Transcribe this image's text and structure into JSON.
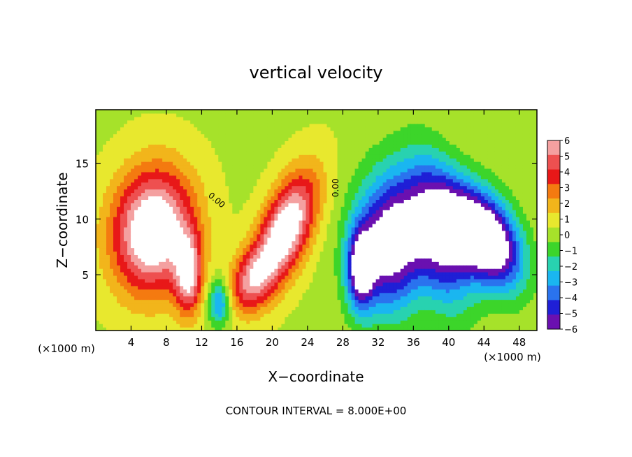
{
  "chart_data": {
    "type": "heatmap",
    "title": "vertical velocity",
    "xlabel": "X−coordinate",
    "ylabel": "Z−coordinate",
    "x_unit_left": "(×1000 m)",
    "x_unit_right": "(×1000 m)",
    "xlim": [
      0,
      50
    ],
    "ylim": [
      0,
      19.8
    ],
    "x_ticks": [
      4,
      8,
      12,
      16,
      20,
      24,
      28,
      32,
      36,
      40,
      44,
      48
    ],
    "y_ticks": [
      5,
      10,
      15
    ],
    "colorbar": {
      "ticks": [
        6,
        5,
        4,
        3,
        2,
        1,
        0,
        -1,
        -2,
        -3,
        -4,
        -5,
        -6
      ],
      "tick_labels": [
        "6",
        "5",
        "4",
        "3",
        "2",
        "1",
        "0",
        "−1",
        "−2",
        "−3",
        "−4",
        "−5",
        "−6"
      ],
      "colors": [
        "#f4a0a0",
        "#ee5050",
        "#e81818",
        "#f47a10",
        "#f2b51b",
        "#e8e82e",
        "#a6e22a",
        "#3cd52a",
        "#28d2b0",
        "#1ab6f0",
        "#2a73ee",
        "#1f1fd6",
        "#6a10b0"
      ]
    },
    "features": [
      {
        "cx": 6.5,
        "cz": 9.0,
        "rx": 4.5,
        "rz": 5.5,
        "rot": -12,
        "amp": 8.5
      },
      {
        "cx": 10.5,
        "cz": 5.0,
        "rx": 1.5,
        "rz": 3.5,
        "rot": 0,
        "amp": 6.0
      },
      {
        "cx": 21.5,
        "cz": 9.0,
        "rx": 2.6,
        "rz": 5.5,
        "rot": -28,
        "amp": 8.0
      },
      {
        "cx": 17.5,
        "cz": 4.5,
        "rx": 2.2,
        "rz": 3.0,
        "rot": -30,
        "amp": 4.5
      },
      {
        "cx": 14.0,
        "cz": 2.5,
        "rx": 1.2,
        "rz": 2.0,
        "rot": 0,
        "amp": -4.5
      },
      {
        "cx": 33.5,
        "cz": 8.0,
        "rx": 4.0,
        "rz": 6.0,
        "rot": -5,
        "amp": -8.5
      },
      {
        "cx": 39.0,
        "cz": 8.5,
        "rx": 3.0,
        "rz": 6.5,
        "rot": 15,
        "amp": -6.0
      },
      {
        "cx": 42.5,
        "cz": 9.0,
        "rx": 3.0,
        "rz": 5.0,
        "rot": 35,
        "amp": -7.0
      },
      {
        "cx": 45.5,
        "cz": 8.0,
        "rx": 2.8,
        "rz": 4.5,
        "rot": 30,
        "amp": -5.5
      },
      {
        "cx": 30.0,
        "cz": 5.5,
        "rx": 1.5,
        "rz": 3.5,
        "rot": 0,
        "amp": -6.5
      }
    ],
    "contour_labels": [
      {
        "text": "0.00",
        "x": 13.5,
        "z": 11.5,
        "angle": 40
      },
      {
        "text": "0.00",
        "x": 27.5,
        "z": 12.8,
        "angle": -90
      }
    ],
    "footnote": "CONTOUR INTERVAL = 8.000E+00",
    "grid": false,
    "legend": "right colorbar"
  }
}
